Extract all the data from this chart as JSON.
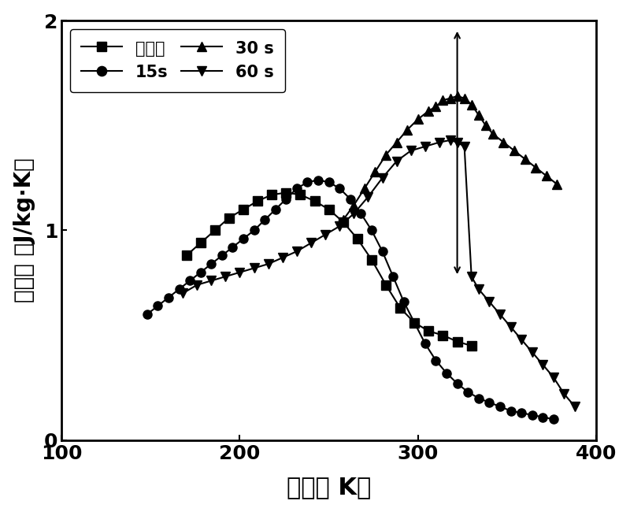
{
  "xlabel": "温度（ K）",
  "ylabel": "磁熵变 （J/kg·K）",
  "xlim": [
    100,
    400
  ],
  "ylim": [
    0,
    2.0
  ],
  "xticks": [
    100,
    200,
    300,
    400
  ],
  "yticks": [
    0,
    1,
    2
  ],
  "series": [
    {
      "label": "制备态",
      "marker": "s",
      "x": [
        170,
        178,
        186,
        194,
        202,
        210,
        218,
        226,
        234,
        242,
        250,
        258,
        266,
        274,
        282,
        290,
        298,
        306,
        314,
        322,
        330
      ],
      "y": [
        0.88,
        0.94,
        1.0,
        1.06,
        1.1,
        1.14,
        1.17,
        1.18,
        1.17,
        1.14,
        1.1,
        1.04,
        0.96,
        0.86,
        0.74,
        0.63,
        0.56,
        0.52,
        0.5,
        0.47,
        0.45
      ]
    },
    {
      "label": "15s",
      "marker": "o",
      "x": [
        148,
        154,
        160,
        166,
        172,
        178,
        184,
        190,
        196,
        202,
        208,
        214,
        220,
        226,
        232,
        238,
        244,
        250,
        256,
        262,
        268,
        274,
        280,
        286,
        292,
        298,
        304,
        310,
        316,
        322,
        328,
        334,
        340,
        346,
        352,
        358,
        364,
        370,
        376
      ],
      "y": [
        0.6,
        0.64,
        0.68,
        0.72,
        0.76,
        0.8,
        0.84,
        0.88,
        0.92,
        0.96,
        1.0,
        1.05,
        1.1,
        1.15,
        1.2,
        1.23,
        1.24,
        1.23,
        1.2,
        1.15,
        1.08,
        1.0,
        0.9,
        0.78,
        0.66,
        0.56,
        0.46,
        0.38,
        0.32,
        0.27,
        0.23,
        0.2,
        0.18,
        0.16,
        0.14,
        0.13,
        0.12,
        0.11,
        0.1
      ]
    },
    {
      "label": "30 s",
      "marker": "^",
      "x": [
        258,
        264,
        270,
        276,
        282,
        288,
        294,
        300,
        306,
        310,
        314,
        318,
        322,
        326,
        330,
        334,
        338,
        342,
        348,
        354,
        360,
        366,
        372,
        378
      ],
      "y": [
        1.05,
        1.12,
        1.2,
        1.28,
        1.36,
        1.42,
        1.48,
        1.53,
        1.57,
        1.59,
        1.62,
        1.63,
        1.64,
        1.63,
        1.6,
        1.55,
        1.5,
        1.46,
        1.42,
        1.38,
        1.34,
        1.3,
        1.26,
        1.22
      ]
    },
    {
      "label": "60 s",
      "marker": "v",
      "x": [
        168,
        176,
        184,
        192,
        200,
        208,
        216,
        224,
        232,
        240,
        248,
        256,
        264,
        272,
        280,
        288,
        296,
        304,
        312,
        318,
        322,
        326,
        330,
        334,
        340,
        346,
        352,
        358,
        364,
        370,
        376,
        382,
        388
      ],
      "y": [
        0.7,
        0.74,
        0.76,
        0.78,
        0.8,
        0.82,
        0.84,
        0.87,
        0.9,
        0.94,
        0.98,
        1.02,
        1.08,
        1.16,
        1.25,
        1.33,
        1.38,
        1.4,
        1.42,
        1.43,
        1.42,
        1.4,
        0.78,
        0.72,
        0.66,
        0.6,
        0.54,
        0.48,
        0.42,
        0.36,
        0.3,
        0.22,
        0.16
      ]
    }
  ],
  "spike": {
    "x": 322,
    "y_low": 0.78,
    "y_high": 1.96
  }
}
